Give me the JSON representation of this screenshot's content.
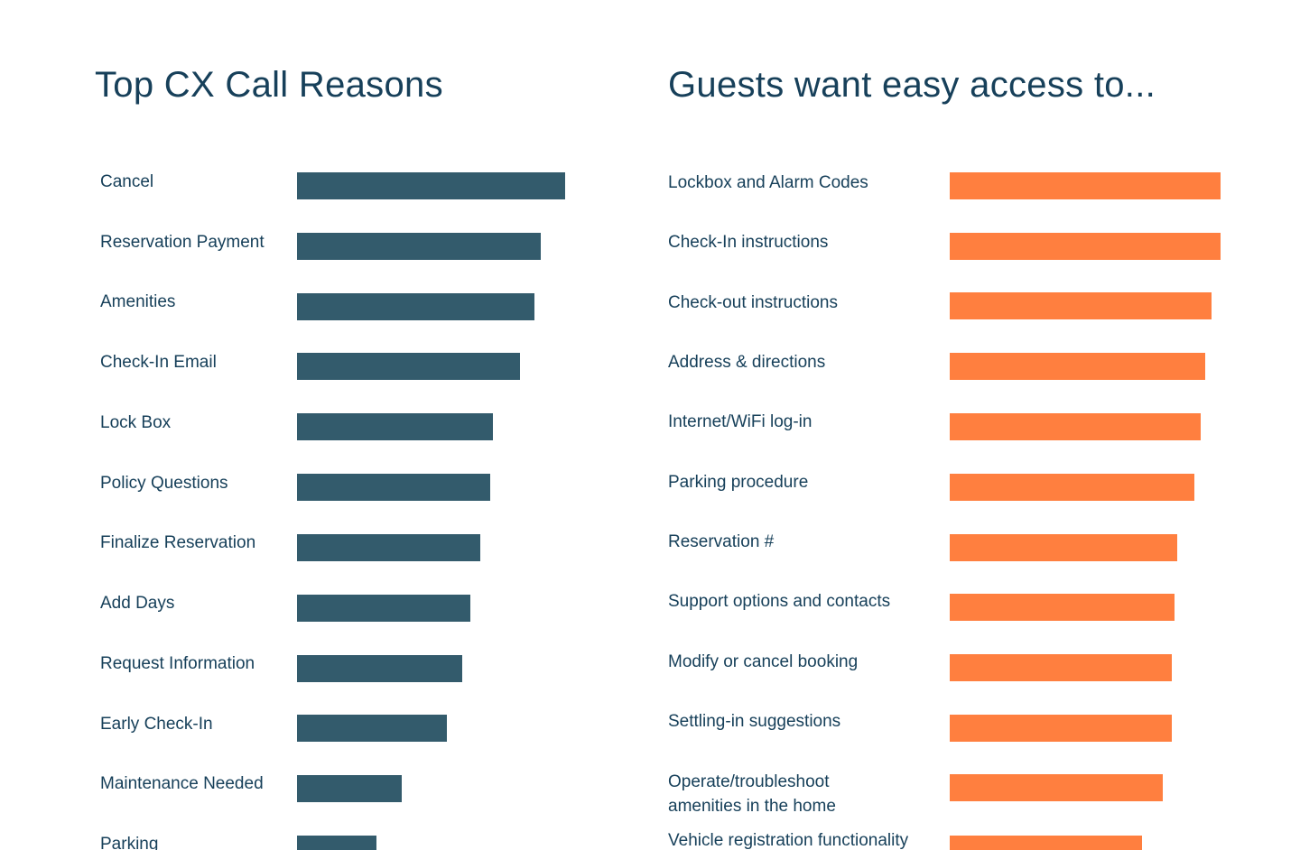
{
  "colors": {
    "left_bar": "#335b6c",
    "right_bar": "#ff7f3f",
    "text": "#17405a",
    "background": "#ffffff"
  },
  "chart_data": [
    {
      "type": "bar",
      "orientation": "horizontal",
      "title": "Top CX Call Reasons",
      "categories": [
        "Cancel",
        "Reservation Payment",
        "Amenities",
        "Check-In Email",
        "Lock Box",
        "Policy Questions",
        "Finalize Reservation",
        "Add Days",
        "Request Information",
        "Early Check-In",
        "Maintenance Needed",
        "Parking"
      ],
      "values": [
        100,
        91,
        88.5,
        83,
        73,
        72,
        68.5,
        64.5,
        61.5,
        56,
        39,
        29.5
      ],
      "xlim": [
        0,
        100
      ],
      "axis_visible": false,
      "grid": false,
      "legend": "none"
    },
    {
      "type": "bar",
      "orientation": "horizontal",
      "title": "Guests want easy access to...",
      "categories": [
        "Lockbox and Alarm Codes",
        "Check-In instructions",
        "Check-out instructions",
        "Address & directions",
        "Internet/WiFi log-in",
        "Parking procedure",
        "Reservation #",
        "Support options and contacts",
        "Modify or cancel booking",
        "Settling-in suggestions",
        "Operate/troubleshoot amenities in the home",
        "Vehicle registration functionality"
      ],
      "label_lines": [
        [
          "Lockbox and Alarm Codes"
        ],
        [
          "Check-In instructions"
        ],
        [
          "Check-out instructions"
        ],
        [
          "Address & directions"
        ],
        [
          "Internet/WiFi log-in"
        ],
        [
          "Parking procedure"
        ],
        [
          "Reservation #"
        ],
        [
          "Support options and contacts"
        ],
        [
          "Modify or cancel booking"
        ],
        [
          "Settling-in suggestions"
        ],
        [
          "Operate/troubleshoot",
          "amenities in the home"
        ],
        [
          "Vehicle registration functionality"
        ]
      ],
      "values": [
        100,
        100,
        96.7,
        94.3,
        92.7,
        90.3,
        84,
        83,
        82,
        82,
        78.7,
        71
      ],
      "xlim": [
        0,
        100
      ],
      "axis_visible": false,
      "grid": false,
      "legend": "none"
    }
  ]
}
